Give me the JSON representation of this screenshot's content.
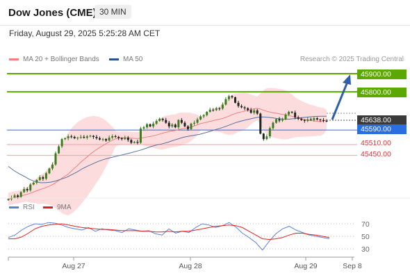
{
  "header": {
    "instrument": "Dow Jones (CME)",
    "timeframe": "30 MIN",
    "datetime": "Friday, August 29, 2025 5:25:28 AM CET"
  },
  "legend": {
    "ma20_label": "MA 20 + Bollinger Bands",
    "ma50_label": "MA 50",
    "credit": "Research © 2025 Trading Central"
  },
  "colors": {
    "green_level": "#5aa800",
    "blue_level": "#2a6fe0",
    "red_level": "#e03030",
    "bollinger_fill": "#fbd6d6",
    "ma20": "#f08080",
    "ma50": "#5570a0",
    "rsi": "#5b7fd6",
    "ma9": "#e02020",
    "bull_candle": "#3a7d1e",
    "bear_candle": "#222222",
    "arrow": "#2f5fa8"
  },
  "price_labels": {
    "l45900": "45900.00",
    "l45800": "45800.00",
    "current": "45638.00",
    "l45590": "45590.00",
    "l45510": "45510.00",
    "l45450": "45450.00"
  },
  "indicator_legend": {
    "rsi_label": "RSI",
    "ma9_label": "9MA"
  },
  "chart_data": {
    "type": "candlestick",
    "x_ticks": [
      "Aug 27",
      "Aug 28",
      "Aug 29",
      "Sep 8"
    ],
    "price_levels": [
      {
        "value": 45900,
        "color": "green"
      },
      {
        "value": 45800,
        "color": "green"
      },
      {
        "value": 45590,
        "color": "blue"
      },
      {
        "value": 45510,
        "color": "red"
      },
      {
        "value": 45450,
        "color": "red"
      }
    ],
    "last_price": 45638,
    "price_series": [
      45210,
      45218,
      45230,
      45222,
      45248,
      45265,
      45258,
      45290,
      45300,
      45315,
      45330,
      45322,
      45352,
      45378,
      45400,
      45462,
      45500,
      45540,
      45545,
      45555,
      45552,
      45545,
      45548,
      45552,
      45547,
      45555,
      45558,
      45552,
      45545,
      45538,
      45540,
      45532,
      45548,
      45556,
      45552,
      45546,
      45540,
      45548,
      45535,
      45520,
      45525,
      45520,
      45598,
      45605,
      45622,
      45610,
      45625,
      45640,
      45652,
      45645,
      45630,
      45610,
      45620,
      45605,
      45645,
      45630,
      45610,
      45595,
      45625,
      45630,
      45648,
      45665,
      45672,
      45690,
      45702,
      45700,
      45710,
      45708,
      45730,
      45760,
      45776,
      45770,
      45740,
      45722,
      45715,
      45710,
      45700,
      45685,
      45698,
      45680,
      45570,
      45540,
      45555,
      45600,
      45630,
      45650,
      45642,
      45648,
      45675,
      45690,
      45686,
      45660,
      45652,
      45645,
      45640,
      45648,
      45645,
      45655,
      45648,
      45645,
      45640,
      45638
    ],
    "ma50_series": [
      45390,
      45368,
      45350,
      45335,
      45318,
      45307,
      45300,
      45300,
      45303,
      45310,
      45320,
      45330,
      45345,
      45360,
      45378,
      45392,
      45405,
      45418,
      45428,
      45436,
      45443,
      45450,
      45457,
      45464,
      45472,
      45480,
      45490,
      45500,
      45508,
      45514,
      45522,
      45532,
      45541,
      45550,
      45556,
      45561,
      45566,
      45574,
      45582,
      45592,
      45600,
      45610,
      45621,
      45632,
      45640,
      45647,
      45654,
      45660,
      45662,
      45660,
      45656,
      45652,
      45650,
      45650,
      45653,
      45657,
      45660,
      45663,
      45665,
      45666,
      45666
    ],
    "rsi": {
      "levels": [
        70,
        50,
        30
      ],
      "rsi_series": [
        48,
        52,
        60,
        66,
        70,
        69,
        72,
        71,
        68,
        64,
        62,
        60,
        64,
        58,
        62,
        60,
        59,
        56,
        62,
        60,
        58,
        59,
        54,
        52,
        62,
        55,
        58,
        56,
        64,
        70,
        68,
        64,
        67,
        72,
        65,
        55,
        48,
        40,
        28,
        42,
        54,
        62,
        66,
        60,
        56,
        52,
        50,
        48,
        46
      ],
      "ma9_series": [
        46,
        46,
        49,
        55,
        62,
        66,
        68,
        69,
        70,
        68,
        66,
        64,
        63,
        62,
        61,
        61,
        60,
        59,
        59,
        59,
        58,
        58,
        57,
        57,
        58,
        57,
        58,
        58,
        60,
        62,
        64,
        66,
        67,
        68,
        67,
        64,
        58,
        52,
        46,
        45,
        46,
        48,
        52,
        55,
        55,
        53,
        52,
        50,
        48
      ]
    }
  }
}
